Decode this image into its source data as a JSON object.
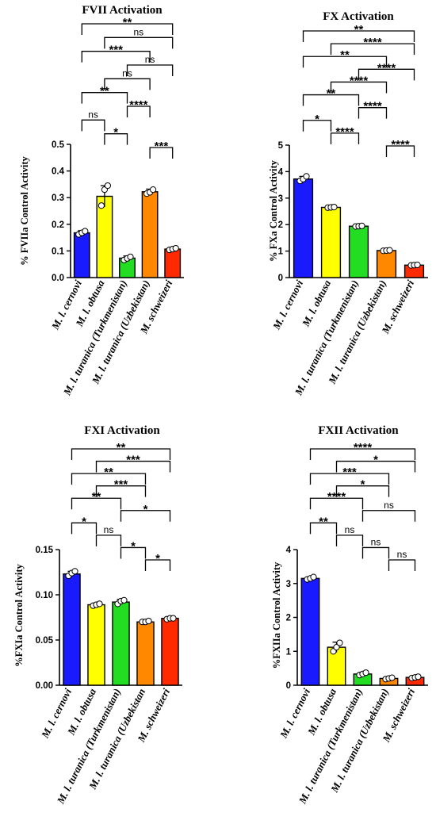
{
  "chart_data": [
    {
      "type": "bar",
      "title": "FVII Activation",
      "ylabel": "% FVIIa Control Activity",
      "xlabel": "",
      "ylim": [
        0,
        0.5
      ],
      "yticks": [
        0.0,
        0.1,
        0.2,
        0.3,
        0.4,
        0.5
      ],
      "ytick_labels": [
        "0.0",
        "0.1",
        "0.2",
        "0.3",
        "0.4",
        "0.5"
      ],
      "categories": [
        "M. l. cernovi",
        "M. l. obtusa",
        "M. l. turanica (Turkmenistan)",
        "M. l. turanica (Uzbekistan)",
        "M. schweizeri"
      ],
      "values": [
        0.168,
        0.305,
        0.073,
        0.322,
        0.107
      ],
      "errors": [
        0.008,
        0.04,
        0.008,
        0.01,
        0.005
      ],
      "points": [
        [
          0.162,
          0.168,
          0.174
        ],
        [
          0.27,
          0.33,
          0.345
        ],
        [
          0.066,
          0.072,
          0.078
        ],
        [
          0.315,
          0.32,
          0.33
        ],
        [
          0.104,
          0.107,
          0.11
        ]
      ],
      "significance": [
        {
          "a": 0,
          "b": 4,
          "label": "**"
        },
        {
          "a": 1,
          "b": 4,
          "label": "ns"
        },
        {
          "a": 0,
          "b": 3,
          "label": "***"
        },
        {
          "a": 2,
          "b": 4,
          "label": "ns"
        },
        {
          "a": 1,
          "b": 3,
          "label": "ns"
        },
        {
          "a": 0,
          "b": 2,
          "label": "**"
        },
        {
          "a": 2,
          "b": 3,
          "label": "****"
        },
        {
          "a": 0,
          "b": 1,
          "label": "ns"
        },
        {
          "a": 1,
          "b": 2,
          "label": "*"
        },
        {
          "a": 3,
          "b": 4,
          "label": "***"
        }
      ]
    },
    {
      "type": "bar",
      "title": "FX Activation",
      "ylabel": "% FXa Control Activity",
      "xlabel": "",
      "ylim": [
        0,
        5
      ],
      "yticks": [
        0,
        1,
        2,
        3,
        4,
        5
      ],
      "ytick_labels": [
        "0",
        "1",
        "2",
        "3",
        "4",
        "5"
      ],
      "categories": [
        "M. l. cernovi",
        "M. l. obtusa",
        "M. l. turanica (Turkmenistan)",
        "M. l. turanica (Uzbekistan)",
        "M. schweizeri"
      ],
      "values": [
        3.72,
        2.65,
        1.94,
        1.02,
        0.47
      ],
      "errors": [
        0.1,
        0.02,
        0.03,
        0.02,
        0.02
      ],
      "points": [
        [
          3.65,
          3.72,
          3.82
        ],
        [
          2.64,
          2.65,
          2.66
        ],
        [
          1.93,
          1.94,
          1.95
        ],
        [
          1.01,
          1.02,
          1.03
        ],
        [
          0.46,
          0.47,
          0.48
        ]
      ],
      "significance": [
        {
          "a": 0,
          "b": 4,
          "label": "**"
        },
        {
          "a": 1,
          "b": 4,
          "label": "****"
        },
        {
          "a": 0,
          "b": 3,
          "label": "**"
        },
        {
          "a": 2,
          "b": 4,
          "label": "****"
        },
        {
          "a": 1,
          "b": 3,
          "label": "****"
        },
        {
          "a": 0,
          "b": 2,
          "label": "**"
        },
        {
          "a": 2,
          "b": 3,
          "label": "****"
        },
        {
          "a": 0,
          "b": 1,
          "label": "*"
        },
        {
          "a": 1,
          "b": 2,
          "label": "****"
        },
        {
          "a": 3,
          "b": 4,
          "label": "****"
        }
      ]
    },
    {
      "type": "bar",
      "title": "FXI Activation",
      "ylabel": "%FXIa Control Activity",
      "xlabel": "",
      "ylim": [
        0,
        0.15
      ],
      "yticks": [
        0.0,
        0.05,
        0.1,
        0.15
      ],
      "ytick_labels": [
        "0.00",
        "0.05",
        "0.10",
        "0.15"
      ],
      "categories": [
        "M. l. cernovi",
        "M. l. obtusa",
        "M. l. turanica (Turkmenistan)",
        "M. l. turanica (Uzbekistan",
        "M. schweizeri"
      ],
      "values": [
        0.123,
        0.089,
        0.092,
        0.07,
        0.074
      ],
      "errors": [
        0.003,
        0.001,
        0.003,
        0.001,
        0.001
      ],
      "points": [
        [
          0.121,
          0.124,
          0.126
        ],
        [
          0.088,
          0.089,
          0.09
        ],
        [
          0.09,
          0.093,
          0.094
        ],
        [
          0.07,
          0.07,
          0.071
        ],
        [
          0.073,
          0.074,
          0.074
        ]
      ],
      "significance": [
        {
          "a": 0,
          "b": 4,
          "label": "**"
        },
        {
          "a": 1,
          "b": 4,
          "label": "***"
        },
        {
          "a": 0,
          "b": 3,
          "label": "**"
        },
        {
          "a": 1,
          "b": 3,
          "label": "***"
        },
        {
          "a": 0,
          "b": 2,
          "label": "**"
        },
        {
          "a": 2,
          "b": 4,
          "label": "*"
        },
        {
          "a": 0,
          "b": 1,
          "label": "*"
        },
        {
          "a": 1,
          "b": 2,
          "label": "ns"
        },
        {
          "a": 2,
          "b": 3,
          "label": "*"
        },
        {
          "a": 3,
          "b": 4,
          "label": "*"
        }
      ]
    },
    {
      "type": "bar",
      "title": "FXII Activation",
      "ylabel": "%FXIIa Control Activity",
      "xlabel": "",
      "ylim": [
        0,
        4
      ],
      "yticks": [
        0,
        1,
        2,
        3,
        4
      ],
      "ytick_labels": [
        "0",
        "1",
        "2",
        "3",
        "4"
      ],
      "categories": [
        "M. l. cernovi",
        "M. l. obtusa",
        "M. l. turanica (Turkmenistan)",
        "M. l. turanica (Uzbekistan)",
        "M. schweizeri"
      ],
      "values": [
        3.15,
        1.12,
        0.33,
        0.2,
        0.23
      ],
      "errors": [
        0.04,
        0.15,
        0.05,
        0.03,
        0.03
      ],
      "points": [
        [
          3.12,
          3.15,
          3.19
        ],
        [
          1.0,
          1.12,
          1.25
        ],
        [
          0.3,
          0.33,
          0.37
        ],
        [
          0.18,
          0.2,
          0.22
        ],
        [
          0.21,
          0.23,
          0.25
        ]
      ],
      "significance": [
        {
          "a": 0,
          "b": 4,
          "label": "****"
        },
        {
          "a": 1,
          "b": 4,
          "label": "*"
        },
        {
          "a": 0,
          "b": 3,
          "label": "***"
        },
        {
          "a": 1,
          "b": 3,
          "label": "*"
        },
        {
          "a": 0,
          "b": 2,
          "label": "****"
        },
        {
          "a": 2,
          "b": 4,
          "label": "ns"
        },
        {
          "a": 0,
          "b": 1,
          "label": "**"
        },
        {
          "a": 1,
          "b": 2,
          "label": "ns"
        },
        {
          "a": 2,
          "b": 3,
          "label": "ns"
        },
        {
          "a": 3,
          "b": 4,
          "label": "ns"
        }
      ]
    }
  ],
  "colors": {
    "bars": [
      "#1a1aff",
      "#ffff00",
      "#22dd22",
      "#ff8800",
      "#ff2a00"
    ],
    "ink": "#000000"
  }
}
